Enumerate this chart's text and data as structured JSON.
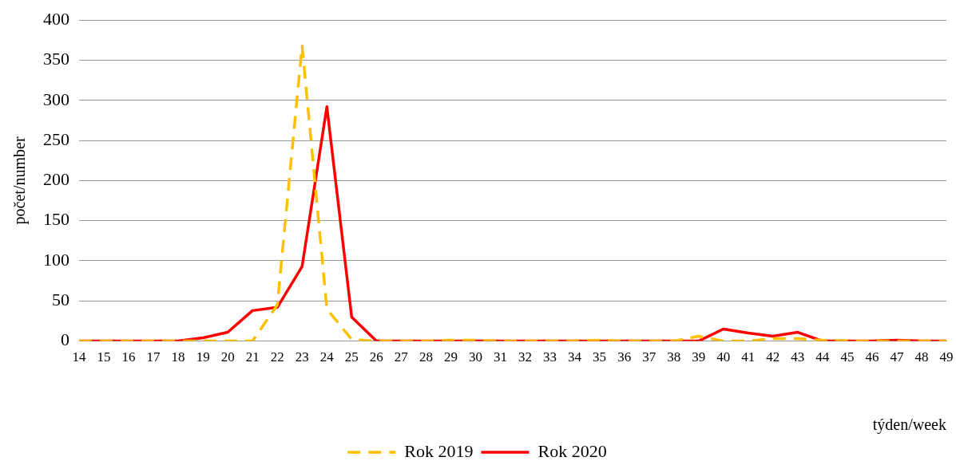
{
  "chart_data": {
    "type": "line",
    "xlabel": "týden/week",
    "ylabel": "počet/number",
    "categories": [
      "14",
      "15",
      "16",
      "17",
      "18",
      "19",
      "20",
      "21",
      "22",
      "23",
      "24",
      "25",
      "26",
      "27",
      "28",
      "29",
      "30",
      "31",
      "32",
      "33",
      "34",
      "35",
      "36",
      "37",
      "38",
      "39",
      "40",
      "41",
      "42",
      "43",
      "44",
      "45",
      "46",
      "47",
      "48",
      "49"
    ],
    "series": [
      {
        "name": "Rok 2019",
        "color": "#ffc000",
        "line_style": "dashed",
        "values": [
          0,
          0,
          0,
          0,
          0,
          0,
          0,
          0,
          45,
          368,
          40,
          2,
          0,
          0,
          0,
          1,
          1,
          0,
          0,
          0,
          0,
          1,
          0,
          0,
          0,
          6,
          0,
          0,
          3,
          3,
          1,
          0,
          0,
          0,
          0,
          0
        ]
      },
      {
        "name": "Rok 2020",
        "color": "#ff0000",
        "line_style": "solid",
        "values": [
          0,
          0,
          0,
          0,
          0,
          4,
          11,
          38,
          42,
          93,
          292,
          30,
          0,
          0,
          0,
          0,
          0,
          0,
          0,
          0,
          0,
          0,
          0,
          0,
          0,
          0,
          15,
          10,
          6,
          11,
          0,
          0,
          0,
          1,
          0,
          0
        ]
      }
    ],
    "ylim": [
      0,
      400
    ],
    "yticks": [
      0,
      50,
      100,
      150,
      200,
      250,
      300,
      350,
      400
    ],
    "grid": "y",
    "legend": "bottom",
    "marker": "none"
  }
}
